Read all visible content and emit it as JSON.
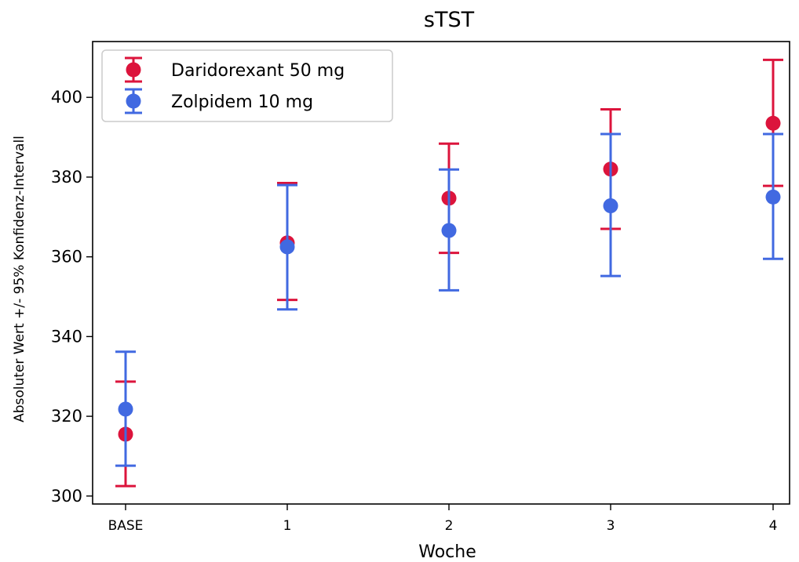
{
  "chart_data": {
    "type": "scatter",
    "title": "sTST",
    "xlabel": "Woche",
    "ylabel": "Absoluter Wert  +/- 95% Konfidenz-Intervall",
    "categories": [
      "BASE",
      "1",
      "2",
      "3",
      "4"
    ],
    "ylim": [
      298,
      414
    ],
    "yticks": [
      300,
      320,
      340,
      360,
      380,
      400
    ],
    "grid": false,
    "legend_position": "top-left",
    "series": [
      {
        "name": "Daridorexant 50 mg",
        "color": "#dc143c",
        "values": [
          315.5,
          363.5,
          374.7,
          382.0,
          393.5
        ],
        "ci_low": [
          302.5,
          349.2,
          361.0,
          367.0,
          377.8
        ],
        "ci_high": [
          328.7,
          378.5,
          388.4,
          397.0,
          409.4
        ]
      },
      {
        "name": "Zolpidem 10 mg",
        "color": "#4169e1",
        "values": [
          321.8,
          362.5,
          366.6,
          372.8,
          375.0
        ],
        "ci_low": [
          307.6,
          346.8,
          351.6,
          355.2,
          359.5
        ],
        "ci_high": [
          336.2,
          378.0,
          381.9,
          390.8,
          390.8
        ]
      }
    ]
  }
}
